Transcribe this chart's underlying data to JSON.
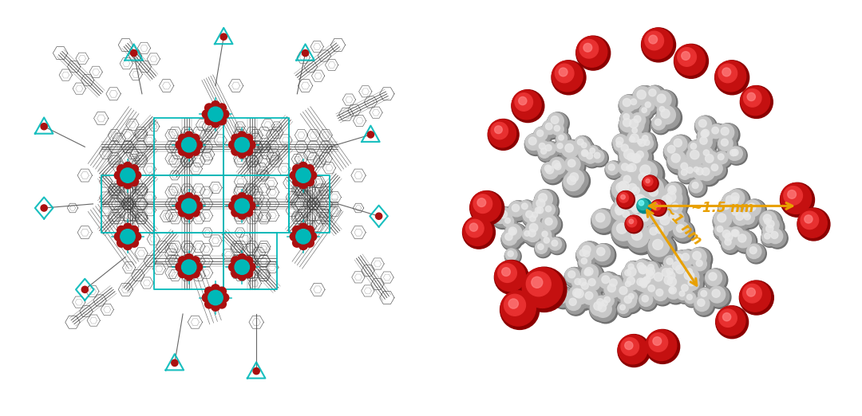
{
  "background_color": "#ffffff",
  "figsize": [
    10.8,
    5.22
  ],
  "dpi": 100,
  "left_panel": {
    "background": "#ffffff",
    "linker_color": "#404040",
    "teal_color": "#00B8B8",
    "red_color": "#AA1010",
    "gray_light": "#C8C8C8",
    "gray_mid": "#909090"
  },
  "right_panel": {
    "background": "#ffffff",
    "gray_light": "#C8C8C8",
    "gray_mid": "#9A9A9A",
    "gray_dark": "#707070",
    "red_color": "#C41010",
    "teal_color": "#20B2AA",
    "arrow_color": "#E8A000",
    "label_1nm": "~1 nm",
    "label_15nm": "~1.5 nm",
    "label_fontsize": 12
  }
}
